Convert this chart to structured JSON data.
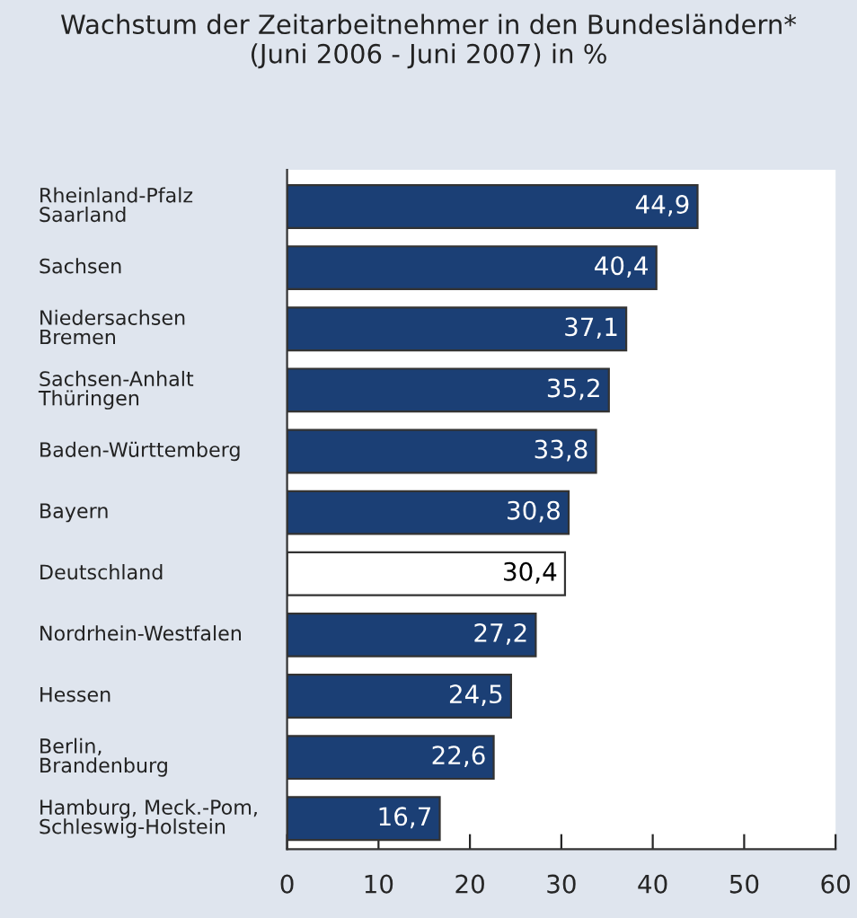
{
  "chart_data": {
    "type": "bar",
    "orientation": "horizontal",
    "title": "Wachstum der Zeitarbeitnehmer in den Bundesländern*\n(Juni 2006 - Juni 2007) in %",
    "categories": [
      "Rheinland-Pfalz\nSaarland",
      "Sachsen",
      "Niedersachsen\nBremen",
      "Sachsen-Anhalt\nThüringen",
      "Baden-Württemberg",
      "Bayern",
      "Deutschland",
      "Nordrhein-Westfalen",
      "Hessen",
      "Berlin,\nBrandenburg",
      "Hamburg, Meck.-Pom,\nSchleswig-Holstein"
    ],
    "values": [
      44.9,
      40.4,
      37.1,
      35.2,
      33.8,
      30.8,
      30.4,
      27.2,
      24.5,
      22.6,
      16.7
    ],
    "value_labels": [
      "44,9",
      "40,4",
      "37,1",
      "35,2",
      "33,8",
      "30,8",
      "30,4",
      "27,2",
      "24,5",
      "22,6",
      "16,7"
    ],
    "colors": [
      "#1b3f75",
      "#1b3f75",
      "#1b3f75",
      "#1b3f75",
      "#1b3f75",
      "#1b3f75",
      "#ffffff",
      "#1b3f75",
      "#1b3f75",
      "#1b3f75",
      "#1b3f75"
    ],
    "xlim": [
      0,
      60
    ],
    "xticks": [
      0,
      10,
      20,
      30,
      40,
      50,
      60
    ],
    "grid": false,
    "legend": false
  }
}
